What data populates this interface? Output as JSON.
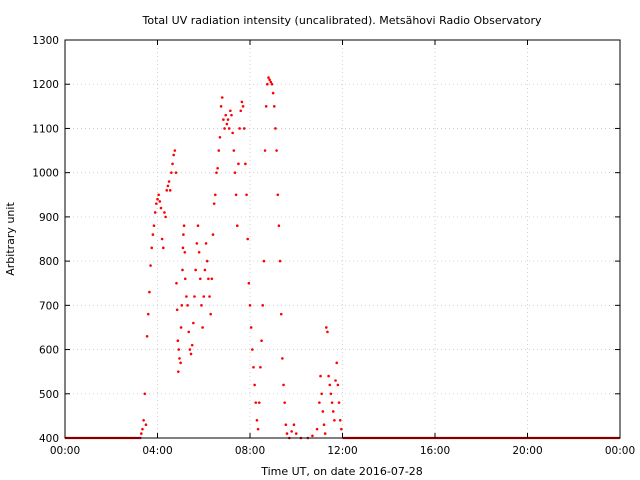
{
  "chart_data": {
    "type": "scatter",
    "title": "Total UV radiation intensity (uncalibrated). Metsähovi Radio Observatory",
    "xlabel": "Time UT, on date 2016-07-28",
    "ylabel": "Arbitrary unit",
    "xlim": [
      0,
      24
    ],
    "ylim": [
      400,
      1300
    ],
    "x_ticks": [
      {
        "value": 0,
        "label": "00:00"
      },
      {
        "value": 4,
        "label": "04:00"
      },
      {
        "value": 8,
        "label": "08:00"
      },
      {
        "value": 12,
        "label": "12:00"
      },
      {
        "value": 16,
        "label": "16:00"
      },
      {
        "value": 20,
        "label": "20:00"
      },
      {
        "value": 24,
        "label": "00:00"
      }
    ],
    "y_ticks": [
      400,
      500,
      600,
      700,
      800,
      900,
      1000,
      1100,
      1200,
      1300
    ],
    "grid": true,
    "point_color": "#ff0000",
    "baseline": {
      "value": 400,
      "ranges": [
        [
          0,
          3.3
        ],
        [
          12.0,
          24
        ]
      ]
    },
    "series": [
      {
        "points": [
          [
            3.3,
            410
          ],
          [
            3.35,
            420
          ],
          [
            3.4,
            440
          ],
          [
            3.45,
            500
          ],
          [
            3.5,
            430
          ],
          [
            3.55,
            630
          ],
          [
            3.6,
            680
          ],
          [
            3.65,
            730
          ],
          [
            3.7,
            790
          ],
          [
            3.75,
            830
          ],
          [
            3.8,
            860
          ],
          [
            3.85,
            880
          ],
          [
            3.9,
            910
          ],
          [
            3.95,
            930
          ],
          [
            4.0,
            940
          ],
          [
            4.05,
            950
          ],
          [
            4.1,
            935
          ],
          [
            4.15,
            920
          ],
          [
            4.2,
            850
          ],
          [
            4.25,
            830
          ],
          [
            4.3,
            910
          ],
          [
            4.35,
            900
          ],
          [
            4.4,
            960
          ],
          [
            4.45,
            970
          ],
          [
            4.5,
            980
          ],
          [
            4.55,
            960
          ],
          [
            4.6,
            1000
          ],
          [
            4.65,
            1020
          ],
          [
            4.7,
            1040
          ],
          [
            4.75,
            1050
          ],
          [
            4.8,
            1000
          ],
          [
            4.82,
            750
          ],
          [
            4.85,
            690
          ],
          [
            4.88,
            620
          ],
          [
            4.9,
            550
          ],
          [
            4.92,
            600
          ],
          [
            4.95,
            580
          ],
          [
            5.0,
            570
          ],
          [
            5.02,
            650
          ],
          [
            5.05,
            700
          ],
          [
            5.08,
            780
          ],
          [
            5.1,
            830
          ],
          [
            5.12,
            860
          ],
          [
            5.15,
            880
          ],
          [
            5.18,
            820
          ],
          [
            5.2,
            760
          ],
          [
            5.25,
            720
          ],
          [
            5.3,
            700
          ],
          [
            5.35,
            640
          ],
          [
            5.4,
            600
          ],
          [
            5.45,
            590
          ],
          [
            5.5,
            610
          ],
          [
            5.55,
            660
          ],
          [
            5.6,
            720
          ],
          [
            5.65,
            780
          ],
          [
            5.7,
            840
          ],
          [
            5.75,
            880
          ],
          [
            5.8,
            820
          ],
          [
            5.85,
            760
          ],
          [
            5.9,
            700
          ],
          [
            5.95,
            650
          ],
          [
            6.0,
            720
          ],
          [
            6.05,
            780
          ],
          [
            6.1,
            840
          ],
          [
            6.15,
            800
          ],
          [
            6.2,
            760
          ],
          [
            6.25,
            720
          ],
          [
            6.3,
            680
          ],
          [
            6.35,
            760
          ],
          [
            6.4,
            860
          ],
          [
            6.45,
            930
          ],
          [
            6.5,
            950
          ],
          [
            6.55,
            1000
          ],
          [
            6.6,
            1010
          ],
          [
            6.65,
            1050
          ],
          [
            6.7,
            1080
          ],
          [
            6.75,
            1150
          ],
          [
            6.8,
            1170
          ],
          [
            6.85,
            1120
          ],
          [
            6.9,
            1100
          ],
          [
            6.95,
            1130
          ],
          [
            7.0,
            1110
          ],
          [
            7.05,
            1120
          ],
          [
            7.1,
            1100
          ],
          [
            7.15,
            1140
          ],
          [
            7.2,
            1130
          ],
          [
            7.25,
            1090
          ],
          [
            7.3,
            1050
          ],
          [
            7.35,
            1000
          ],
          [
            7.4,
            950
          ],
          [
            7.45,
            880
          ],
          [
            7.5,
            1020
          ],
          [
            7.55,
            1100
          ],
          [
            7.6,
            1140
          ],
          [
            7.65,
            1160
          ],
          [
            7.7,
            1150
          ],
          [
            7.75,
            1100
          ],
          [
            7.8,
            1020
          ],
          [
            7.85,
            950
          ],
          [
            7.9,
            850
          ],
          [
            7.95,
            750
          ],
          [
            8.0,
            700
          ],
          [
            8.05,
            650
          ],
          [
            8.1,
            600
          ],
          [
            8.15,
            560
          ],
          [
            8.2,
            520
          ],
          [
            8.25,
            480
          ],
          [
            8.3,
            440
          ],
          [
            8.35,
            420
          ],
          [
            8.4,
            480
          ],
          [
            8.45,
            560
          ],
          [
            8.5,
            620
          ],
          [
            8.55,
            700
          ],
          [
            8.6,
            800
          ],
          [
            8.65,
            1050
          ],
          [
            8.7,
            1150
          ],
          [
            8.75,
            1200
          ],
          [
            8.8,
            1215
          ],
          [
            8.85,
            1210
          ],
          [
            8.9,
            1205
          ],
          [
            8.95,
            1200
          ],
          [
            9.0,
            1180
          ],
          [
            9.05,
            1150
          ],
          [
            9.1,
            1100
          ],
          [
            9.15,
            1050
          ],
          [
            9.2,
            950
          ],
          [
            9.25,
            880
          ],
          [
            9.3,
            800
          ],
          [
            9.35,
            680
          ],
          [
            9.4,
            580
          ],
          [
            9.45,
            520
          ],
          [
            9.5,
            480
          ],
          [
            9.55,
            430
          ],
          [
            9.6,
            410
          ],
          [
            9.7,
            400
          ],
          [
            9.8,
            415
          ],
          [
            9.9,
            430
          ],
          [
            10.0,
            410
          ],
          [
            10.2,
            400
          ],
          [
            10.5,
            400
          ],
          [
            10.7,
            405
          ],
          [
            10.9,
            420
          ],
          [
            11.0,
            480
          ],
          [
            11.05,
            540
          ],
          [
            11.1,
            500
          ],
          [
            11.15,
            460
          ],
          [
            11.2,
            430
          ],
          [
            11.25,
            410
          ],
          [
            11.3,
            650
          ],
          [
            11.35,
            640
          ],
          [
            11.4,
            540
          ],
          [
            11.45,
            520
          ],
          [
            11.5,
            500
          ],
          [
            11.55,
            480
          ],
          [
            11.6,
            460
          ],
          [
            11.65,
            440
          ],
          [
            11.7,
            530
          ],
          [
            11.75,
            570
          ],
          [
            11.8,
            520
          ],
          [
            11.85,
            480
          ],
          [
            11.9,
            440
          ],
          [
            11.95,
            420
          ]
        ]
      }
    ]
  }
}
